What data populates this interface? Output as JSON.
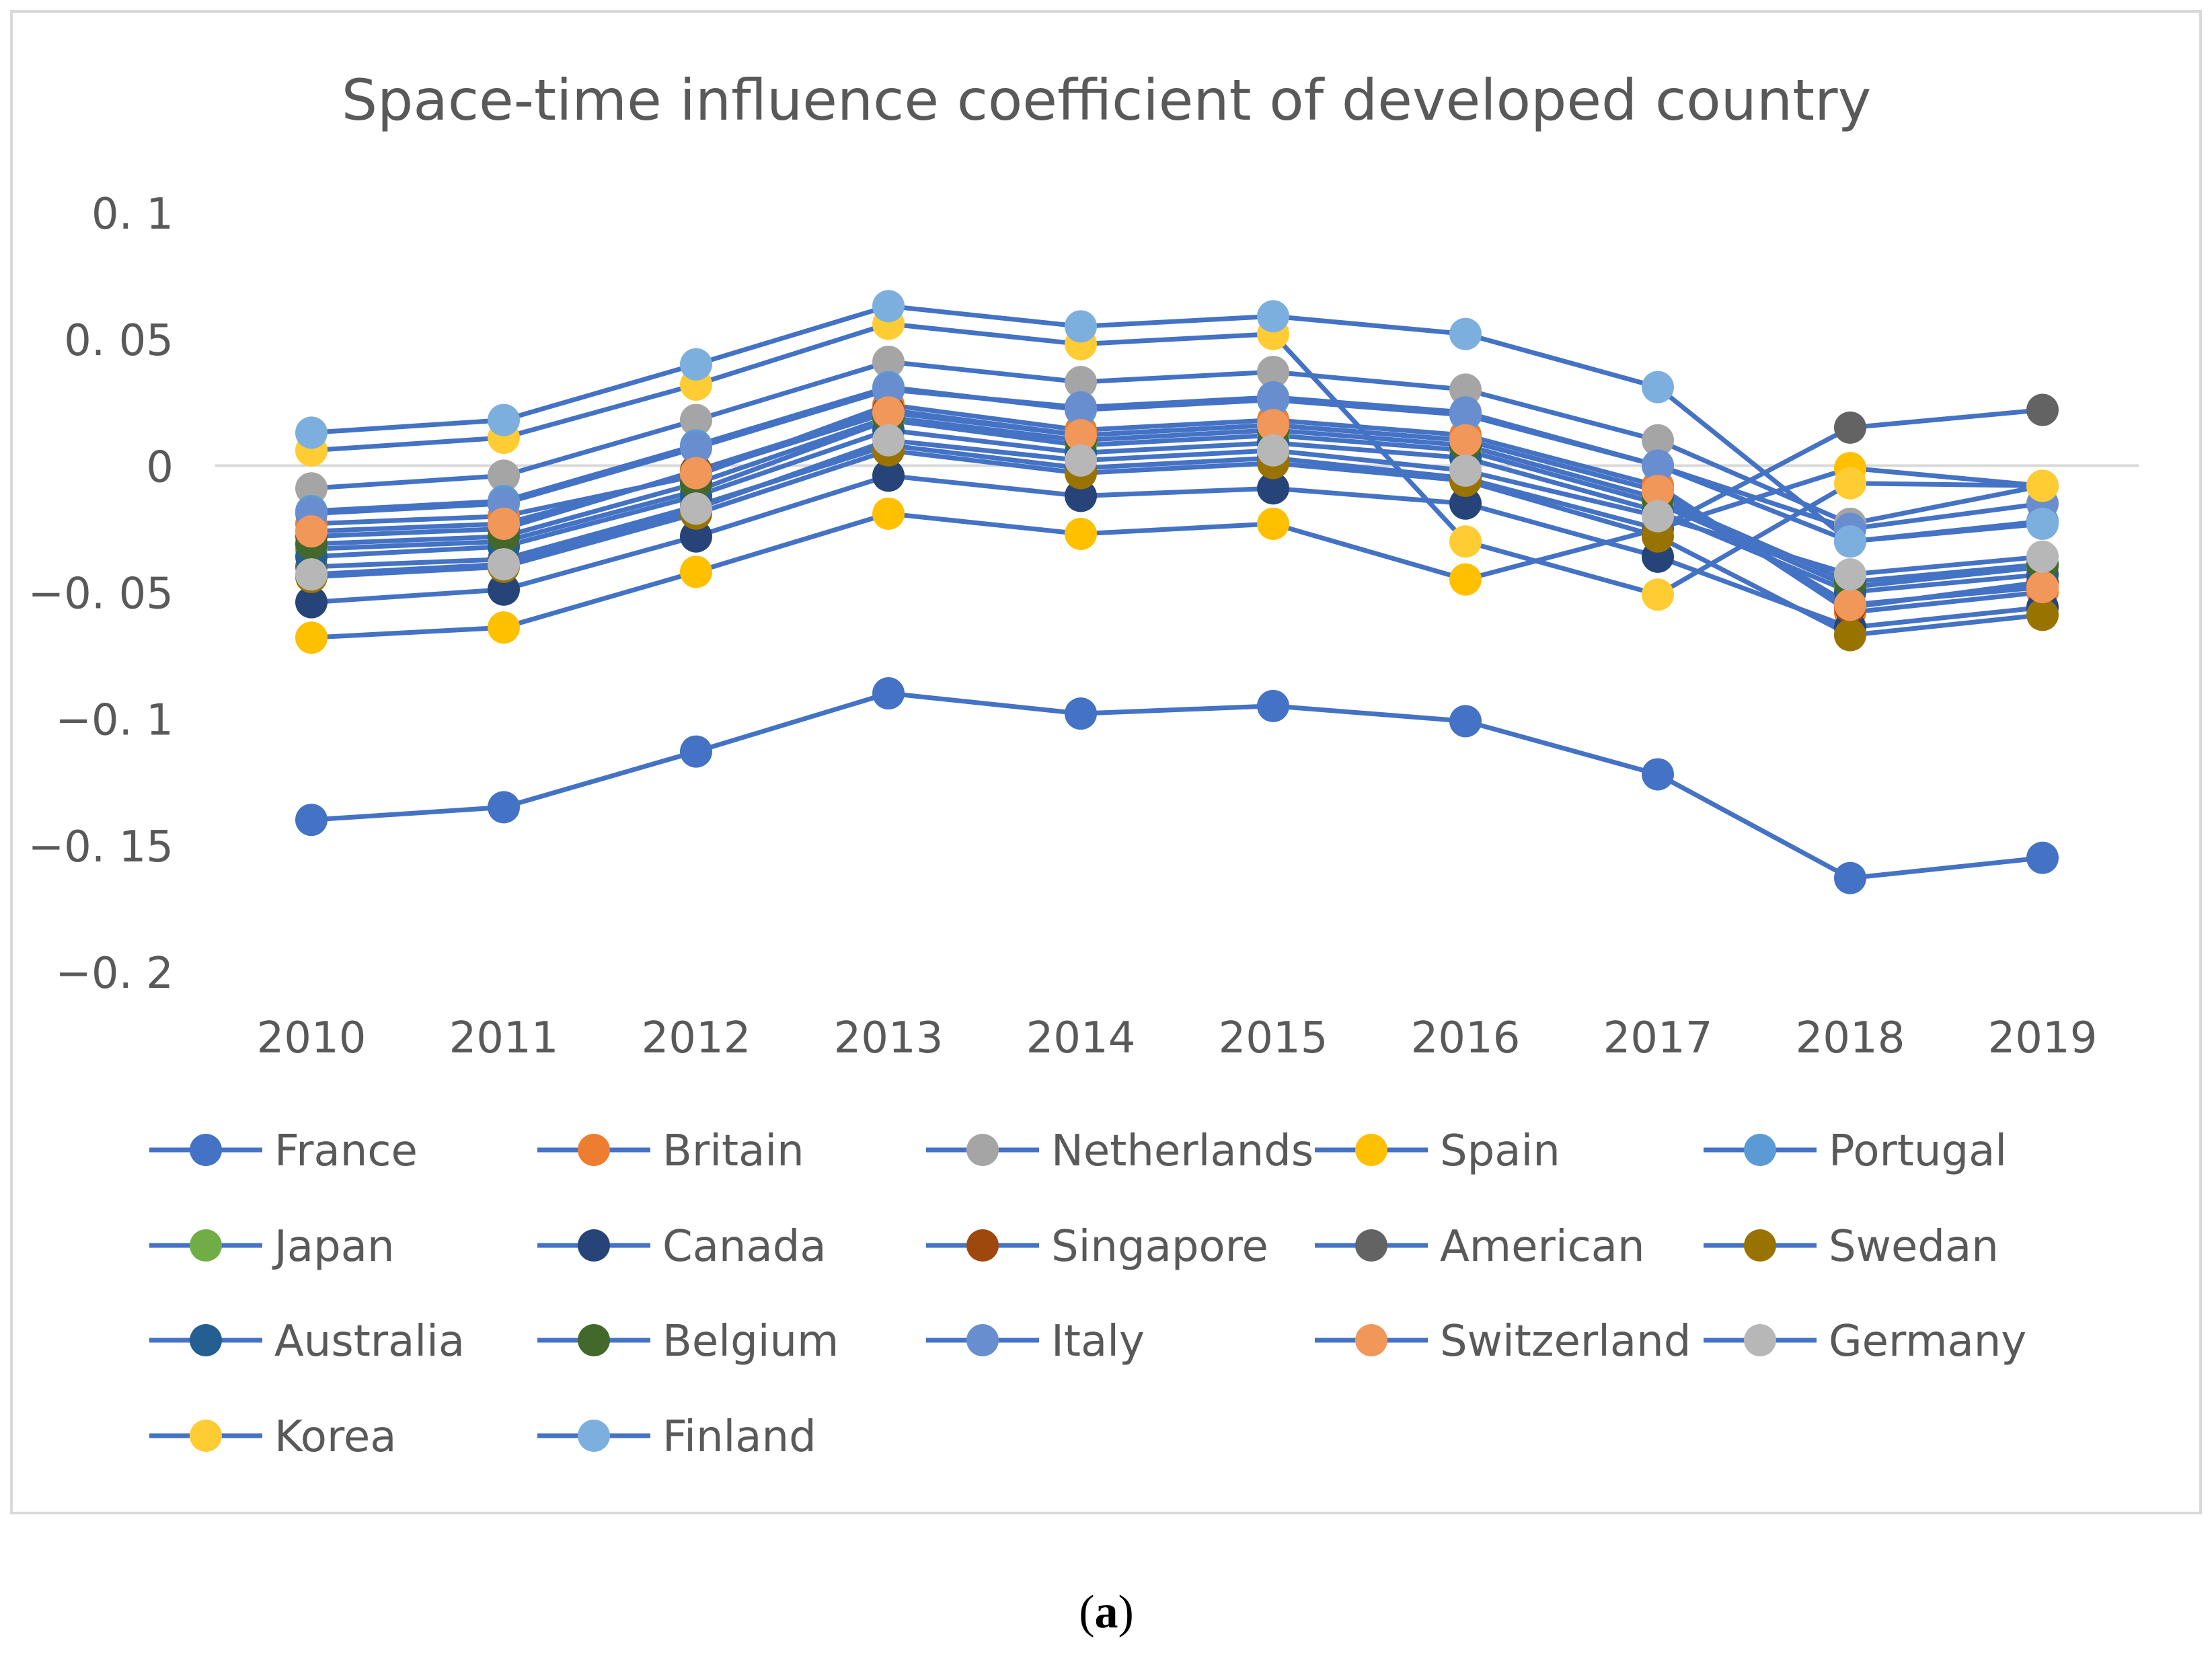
{
  "chart_data": {
    "type": "line",
    "title": "Space-time influence coefficient of developed country",
    "caption_open": "(",
    "caption_letter": "a",
    "caption_close": ")",
    "xlabel": "",
    "ylabel": "",
    "ylim": [
      -0.2,
      0.1
    ],
    "yticks": [
      0.1,
      0.05,
      0,
      -0.05,
      -0.1,
      -0.15,
      -0.2
    ],
    "ytick_labels": [
      "0. 1",
      "0. 05",
      "0",
      "−0. 05",
      "−0. 1",
      "−0. 15",
      "−0. 2"
    ],
    "categories": [
      "2010",
      "2011",
      "2012",
      "2013",
      "2014",
      "2015",
      "2016",
      "2017",
      "2018",
      "2019"
    ],
    "line_color": "#4472C4",
    "gridline_color": "#D9D9D9",
    "legend_position": "bottom",
    "series": [
      {
        "name": "France",
        "color": "#4472C4",
        "values": [
          -0.14,
          -0.135,
          -0.113,
          -0.09,
          -0.098,
          -0.095,
          -0.101,
          -0.122,
          -0.163,
          -0.155
        ]
      },
      {
        "name": "Britain",
        "color": "#ED7D31",
        "values": [
          -0.023,
          -0.02,
          -0.004,
          0.024,
          0.014,
          0.018,
          0.012,
          -0.008,
          -0.058,
          -0.05
        ]
      },
      {
        "name": "Netherlands",
        "color": "#A5A5A5",
        "values": [
          -0.009,
          -0.004,
          0.018,
          0.041,
          0.033,
          0.037,
          0.03,
          0.01,
          -0.023,
          -0.008
        ]
      },
      {
        "name": "Spain",
        "color": "#FFC000",
        "values": [
          -0.068,
          -0.064,
          -0.042,
          -0.019,
          -0.027,
          -0.023,
          -0.045,
          -0.025,
          -0.001,
          -0.008
        ]
      },
      {
        "name": "Portugal",
        "color": "#5B9BD5",
        "values": [
          -0.018,
          -0.014,
          0.008,
          0.031,
          0.022,
          0.026,
          0.02,
          0.0,
          -0.03,
          -0.022
        ]
      },
      {
        "name": "Japan",
        "color": "#70AD47",
        "values": [
          -0.033,
          -0.03,
          -0.01,
          0.018,
          0.008,
          0.012,
          0.006,
          -0.015,
          -0.048,
          -0.04
        ]
      },
      {
        "name": "Canada",
        "color": "#264478",
        "values": [
          -0.054,
          -0.049,
          -0.028,
          -0.004,
          -0.012,
          -0.009,
          -0.015,
          -0.036,
          -0.064,
          -0.056
        ]
      },
      {
        "name": "Singapore",
        "color": "#9E480E",
        "values": [
          -0.028,
          -0.025,
          -0.002,
          0.022,
          0.012,
          0.016,
          0.01,
          -0.01,
          -0.056,
          -0.046
        ]
      },
      {
        "name": "American",
        "color": "#636363",
        "values": [
          -0.04,
          -0.037,
          -0.016,
          0.008,
          -0.001,
          0.003,
          -0.005,
          -0.025,
          0.015,
          0.022
        ]
      },
      {
        "name": "Swedan",
        "color": "#997300",
        "values": [
          -0.044,
          -0.04,
          -0.019,
          0.006,
          -0.003,
          0.001,
          -0.006,
          -0.028,
          -0.067,
          -0.059
        ]
      },
      {
        "name": "Australia",
        "color": "#255E91",
        "values": [
          -0.036,
          -0.032,
          -0.012,
          0.014,
          0.005,
          0.009,
          0.003,
          -0.018,
          -0.05,
          -0.043
        ]
      },
      {
        "name": "Belgium",
        "color": "#43682B",
        "values": [
          -0.031,
          -0.028,
          -0.007,
          0.019,
          0.01,
          0.014,
          0.008,
          -0.013,
          -0.046,
          -0.039
        ]
      },
      {
        "name": "Italy",
        "color": "#698ED0",
        "values": [
          -0.019,
          -0.015,
          0.007,
          0.03,
          0.023,
          0.027,
          0.021,
          0.0,
          -0.025,
          -0.015
        ]
      },
      {
        "name": "Switzerland",
        "color": "#F1975A",
        "values": [
          -0.026,
          -0.023,
          -0.003,
          0.021,
          0.012,
          0.016,
          0.01,
          -0.01,
          -0.055,
          -0.048
        ]
      },
      {
        "name": "Germany",
        "color": "#B7B7B7",
        "values": [
          -0.043,
          -0.039,
          -0.017,
          0.01,
          0.002,
          0.006,
          -0.002,
          -0.02,
          -0.043,
          -0.036
        ]
      },
      {
        "name": "Korea",
        "color": "#FFCD33",
        "values": [
          0.006,
          0.011,
          0.032,
          0.056,
          0.048,
          0.052,
          -0.03,
          -0.051,
          -0.007,
          -0.008
        ]
      },
      {
        "name": "Finland",
        "color": "#7CAFDD",
        "values": [
          0.013,
          0.018,
          0.04,
          0.063,
          0.055,
          0.059,
          0.052,
          0.031,
          -0.03,
          -0.023
        ]
      }
    ]
  }
}
